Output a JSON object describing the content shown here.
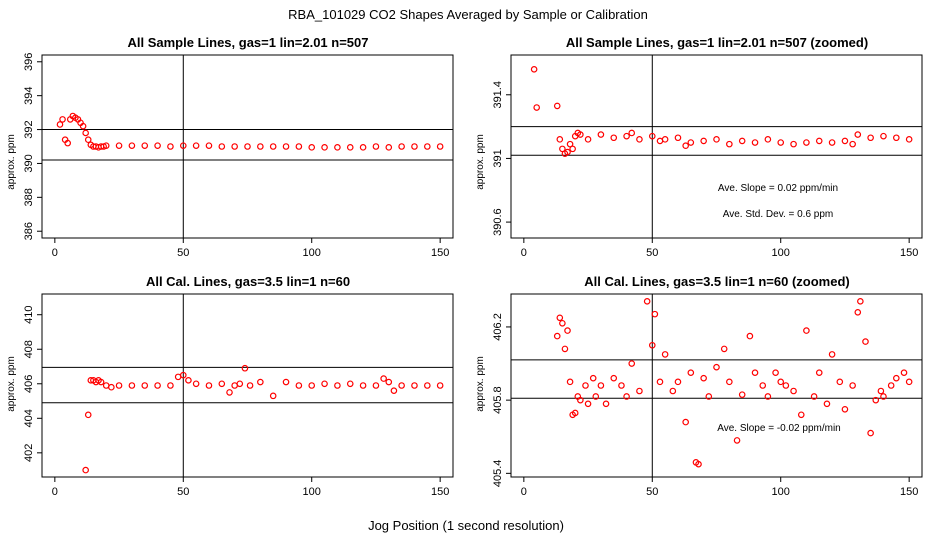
{
  "figure": {
    "title": "RBA_101029  CO2 Shapes Averaged by Sample or Calibration",
    "xlabel": "Jog Position (1 second resolution)"
  },
  "colors": {
    "points": "#ff0000",
    "axes": "#000000",
    "background": "#ffffff"
  },
  "chart_data": [
    {
      "type": "scatter",
      "title": "All Sample Lines, gas=1 lin=2.01 n=507",
      "ylabel": "approx. ppm",
      "xlim": [
        -5,
        155
      ],
      "ylim": [
        385.6,
        396.4
      ],
      "xticks": [
        0,
        50,
        100,
        150
      ],
      "yticks": [
        386,
        388,
        390,
        392,
        394,
        396
      ],
      "ref_lines": {
        "vline": 50,
        "hlines": [
          390.2,
          392.0
        ]
      },
      "annotations": [],
      "x": [
        2,
        3,
        4,
        5,
        6,
        7,
        8,
        9,
        10,
        11,
        12,
        13,
        14,
        15,
        16,
        17,
        18,
        19,
        20,
        25,
        30,
        35,
        40,
        45,
        50,
        55,
        60,
        65,
        70,
        75,
        80,
        85,
        90,
        95,
        100,
        105,
        110,
        115,
        120,
        125,
        130,
        135,
        140,
        145,
        150
      ],
      "y": [
        392.3,
        392.6,
        391.4,
        391.2,
        392.6,
        392.8,
        392.7,
        392.6,
        392.4,
        392.2,
        391.8,
        391.4,
        391.1,
        391.0,
        391.0,
        390.95,
        391.0,
        391.0,
        391.05,
        391.05,
        391.05,
        391.05,
        391.05,
        391.0,
        391.05,
        391.05,
        391.05,
        391.0,
        391.0,
        391.0,
        391.0,
        391.0,
        391.0,
        391.0,
        390.95,
        390.95,
        390.95,
        390.95,
        390.95,
        391.0,
        390.95,
        391.0,
        391.0,
        391.0,
        391.0
      ]
    },
    {
      "type": "scatter",
      "title": "All Sample Lines, gas=1 lin=2.01 n=507 (zoomed)",
      "ylabel": "approx. ppm",
      "xlim": [
        -5,
        155
      ],
      "ylim": [
        390.5,
        391.65
      ],
      "xticks": [
        0,
        50,
        100,
        150
      ],
      "yticks": [
        390.6,
        391.0,
        391.4
      ],
      "ref_lines": {
        "vline": 50,
        "hlines": [
          391.02,
          391.2
        ]
      },
      "annotations": [
        {
          "text": "Ave. Slope =  0.02  ppm/min"
        },
        {
          "text": "Ave. Std. Dev. =  0.6  ppm"
        }
      ],
      "x": [
        4,
        5,
        13,
        14,
        15,
        16,
        17,
        18,
        19,
        20,
        21,
        22,
        25,
        30,
        35,
        40,
        42,
        45,
        50,
        53,
        55,
        60,
        63,
        65,
        70,
        75,
        80,
        85,
        90,
        95,
        100,
        105,
        110,
        115,
        120,
        125,
        128,
        130,
        135,
        140,
        145,
        150
      ],
      "y": [
        391.56,
        391.32,
        391.33,
        391.12,
        391.06,
        391.03,
        391.04,
        391.09,
        391.06,
        391.14,
        391.16,
        391.15,
        391.12,
        391.15,
        391.13,
        391.14,
        391.16,
        391.12,
        391.14,
        391.11,
        391.12,
        391.13,
        391.08,
        391.1,
        391.11,
        391.12,
        391.09,
        391.11,
        391.1,
        391.12,
        391.1,
        391.09,
        391.1,
        391.11,
        391.1,
        391.11,
        391.09,
        391.15,
        391.13,
        391.14,
        391.13,
        391.12
      ]
    },
    {
      "type": "scatter",
      "title": "All Cal. Lines, gas=3.5 lin=1 n=60",
      "ylabel": "approx. ppm",
      "xlim": [
        -5,
        155
      ],
      "ylim": [
        400.6,
        411.2
      ],
      "xticks": [
        0,
        50,
        100,
        150
      ],
      "yticks": [
        402,
        404,
        406,
        408,
        410
      ],
      "ref_lines": {
        "vline": 50,
        "hlines": [
          404.9,
          406.95
        ]
      },
      "annotations": [],
      "x": [
        12,
        13,
        14,
        15,
        16,
        17,
        18,
        20,
        22,
        25,
        30,
        35,
        40,
        45,
        48,
        50,
        52,
        55,
        60,
        65,
        68,
        70,
        72,
        74,
        76,
        80,
        85,
        90,
        95,
        100,
        105,
        110,
        115,
        120,
        125,
        128,
        130,
        132,
        135,
        140,
        145,
        150
      ],
      "y": [
        401.0,
        404.2,
        406.2,
        406.2,
        406.1,
        406.2,
        406.1,
        405.9,
        405.8,
        405.9,
        405.9,
        405.9,
        405.9,
        405.9,
        406.4,
        406.5,
        406.2,
        406.0,
        405.9,
        406.0,
        405.5,
        405.9,
        406.0,
        406.9,
        405.9,
        406.1,
        405.3,
        406.1,
        405.9,
        405.9,
        406.0,
        405.9,
        406.0,
        405.9,
        405.9,
        406.3,
        406.1,
        405.6,
        405.9,
        405.9,
        405.9,
        405.9
      ]
    },
    {
      "type": "scatter",
      "title": "All Cal. Lines, gas=3.5 lin=1 n=60 (zoomed)",
      "ylabel": "approx. ppm",
      "xlim": [
        -5,
        155
      ],
      "ylim": [
        405.38,
        406.38
      ],
      "xticks": [
        0,
        50,
        100,
        150
      ],
      "yticks": [
        405.4,
        405.8,
        406.2
      ],
      "ref_lines": {
        "vline": 50,
        "hlines": [
          405.81,
          406.02
        ]
      },
      "annotations": [
        {
          "text": "Ave. Slope =  -0.02  ppm/min"
        }
      ],
      "x": [
        13,
        14,
        15,
        16,
        17,
        18,
        19,
        20,
        21,
        22,
        24,
        25,
        27,
        28,
        30,
        32,
        35,
        38,
        40,
        42,
        45,
        48,
        50,
        51,
        53,
        55,
        58,
        60,
        63,
        65,
        67,
        68,
        70,
        72,
        75,
        78,
        80,
        83,
        85,
        88,
        90,
        93,
        95,
        98,
        100,
        102,
        105,
        108,
        110,
        113,
        115,
        118,
        120,
        123,
        125,
        128,
        130,
        131,
        133,
        135,
        137,
        139,
        140,
        143,
        145,
        148,
        150
      ],
      "y": [
        406.15,
        406.25,
        406.22,
        406.08,
        406.18,
        405.9,
        405.72,
        405.73,
        405.82,
        405.8,
        405.88,
        405.78,
        405.92,
        405.82,
        405.88,
        405.78,
        405.92,
        405.88,
        405.82,
        406.0,
        405.85,
        406.34,
        406.1,
        406.27,
        405.9,
        406.05,
        405.85,
        405.9,
        405.68,
        405.95,
        405.46,
        405.45,
        405.92,
        405.82,
        405.98,
        406.08,
        405.9,
        405.58,
        405.83,
        406.15,
        405.95,
        405.88,
        405.82,
        405.95,
        405.9,
        405.88,
        405.85,
        405.72,
        406.18,
        405.82,
        405.95,
        405.78,
        406.05,
        405.9,
        405.75,
        405.88,
        406.28,
        406.34,
        406.12,
        405.62,
        405.8,
        405.85,
        405.82,
        405.88,
        405.92,
        405.95,
        405.9
      ]
    }
  ]
}
